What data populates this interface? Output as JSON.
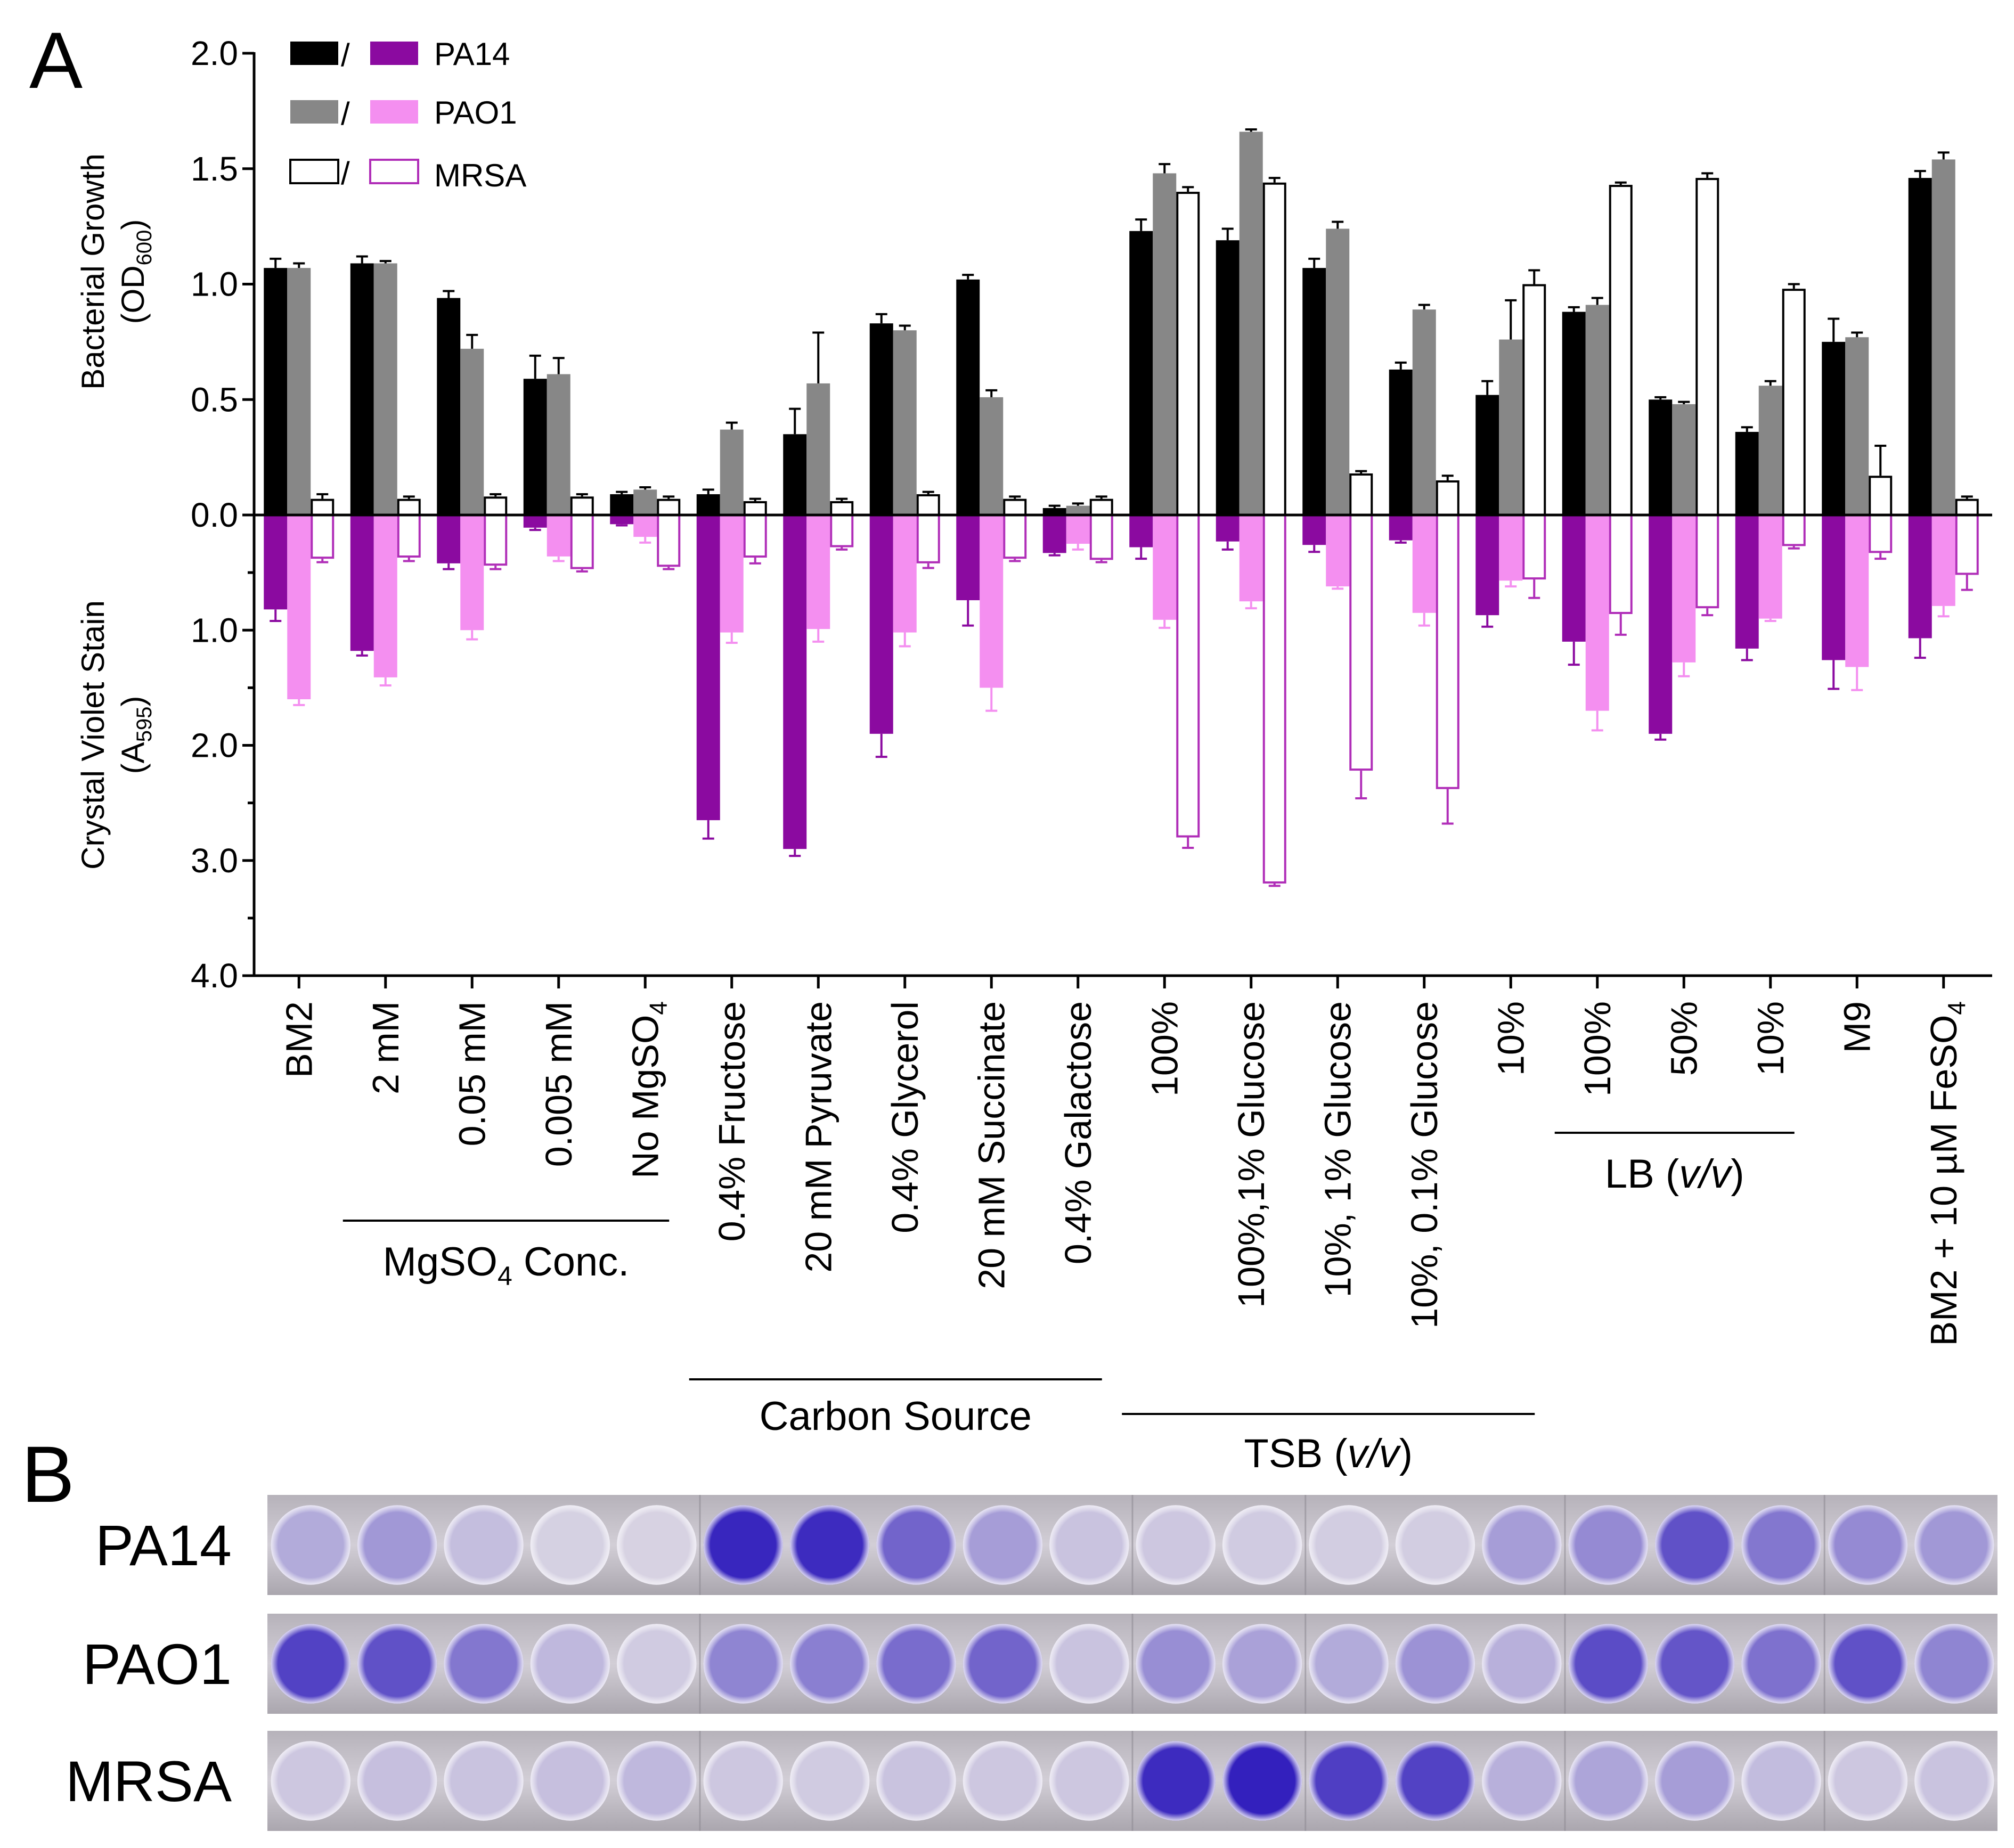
{
  "panel_labels": [
    "A",
    "B"
  ],
  "legend": [
    {
      "name": "PA14",
      "growth_color": "#000000",
      "stain_color": "#8b0aa0",
      "growth_fill": "solid",
      "stain_fill": "solid"
    },
    {
      "name": "PAO1",
      "growth_color": "#878787",
      "stain_color": "#f48ff0",
      "growth_fill": "solid",
      "stain_fill": "solid"
    },
    {
      "name": "MRSA",
      "growth_color": "#000000",
      "stain_color": "#b02eb8",
      "growth_fill": "open",
      "stain_fill": "open"
    }
  ],
  "legend_separator": "/",
  "chart_data": {
    "type": "bar",
    "top_ylabel": "Bacterial Growth",
    "top_ylabel_sub": {
      "pre": "(OD",
      "sub": "600",
      "post": ")"
    },
    "bottom_ylabel": "Crystal Violet Stain",
    "bottom_ylabel_sub": {
      "pre": "(A",
      "sub": "595",
      "post": ")"
    },
    "top_ylim": [
      0,
      2.0
    ],
    "bottom_ylim": [
      0,
      4.0
    ],
    "top_ticks": [
      "0.0",
      "0.5",
      "1.0",
      "1.5",
      "2.0"
    ],
    "bottom_ticks": [
      "1.0",
      "2.0",
      "3.0",
      "4.0"
    ],
    "categories": [
      "BM2",
      "2 mM",
      "0.05 mM",
      "0.005 mM",
      "No MgSO4",
      "0.4% Fructose",
      "20 mM Pyruvate",
      "0.4% Glycerol",
      "20 mM Succinate",
      "0.4% Galactose",
      "100%",
      "100%,1% Glucose",
      "10%, 1% Glucose",
      "10%, 0.1% Glucose",
      "10%",
      "100%",
      "50%",
      "10%",
      "M9",
      "BM2 + 10 µM FeSO4"
    ],
    "category_display": [
      {
        "main": "BM2"
      },
      {
        "main": "2 mM"
      },
      {
        "main": "0.05 mM"
      },
      {
        "main": "0.005 mM"
      },
      {
        "main": "No MgSO",
        "sub": "4"
      },
      {
        "main": "0.4% Fructose"
      },
      {
        "main": "20 mM Pyruvate"
      },
      {
        "main": "0.4% Glycerol"
      },
      {
        "main": "20 mM Succinate"
      },
      {
        "main": "0.4% Galactose"
      },
      {
        "main": "100%"
      },
      {
        "main": "100%,1% Glucose"
      },
      {
        "main": "10%, 1% Glucose"
      },
      {
        "main": "10%, 0.1% Glucose"
      },
      {
        "main": "10%"
      },
      {
        "main": "100%"
      },
      {
        "main": "50%"
      },
      {
        "main": "10%"
      },
      {
        "main": "M9"
      },
      {
        "main": "BM2 + 10 µM FeSO",
        "sub": "4"
      }
    ],
    "groups": [
      {
        "pre": "MgSO",
        "sub": "4",
        "post": " Conc.",
        "italic": "",
        "start": 1,
        "end": 4
      },
      {
        "pre": "Carbon Source",
        "sub": "",
        "post": "",
        "italic": "",
        "start": 5,
        "end": 9
      },
      {
        "pre": "TSB (",
        "sub": "",
        "post": ")",
        "italic": "v/v",
        "start": 10,
        "end": 14
      },
      {
        "pre": "LB (",
        "sub": "",
        "post": ")",
        "italic": "v/v",
        "start": 15,
        "end": 17
      }
    ],
    "growth_series": [
      {
        "name": "PA14",
        "values": [
          1.07,
          1.09,
          0.94,
          0.59,
          0.09,
          0.09,
          0.35,
          0.83,
          1.02,
          0.03,
          1.23,
          1.19,
          1.07,
          0.63,
          0.52,
          0.88,
          0.5,
          0.36,
          0.75,
          1.46
        ],
        "errors": [
          0.04,
          0.03,
          0.03,
          0.1,
          0.01,
          0.02,
          0.11,
          0.04,
          0.02,
          0.01,
          0.05,
          0.05,
          0.04,
          0.03,
          0.06,
          0.02,
          0.01,
          0.02,
          0.1,
          0.03
        ]
      },
      {
        "name": "PAO1",
        "values": [
          1.07,
          1.09,
          0.72,
          0.61,
          0.11,
          0.37,
          0.57,
          0.8,
          0.51,
          0.04,
          1.48,
          1.66,
          1.24,
          0.89,
          0.76,
          0.91,
          0.48,
          0.56,
          0.77,
          1.54
        ],
        "errors": [
          0.02,
          0.01,
          0.06,
          0.07,
          0.01,
          0.03,
          0.22,
          0.02,
          0.03,
          0.01,
          0.04,
          0.01,
          0.03,
          0.02,
          0.17,
          0.03,
          0.01,
          0.02,
          0.02,
          0.03
        ]
      },
      {
        "name": "MRSA",
        "values": [
          0.07,
          0.07,
          0.08,
          0.08,
          0.07,
          0.06,
          0.06,
          0.09,
          0.07,
          0.07,
          1.4,
          1.44,
          0.18,
          0.15,
          1.0,
          1.43,
          1.46,
          0.98,
          0.17,
          0.07
        ],
        "errors": [
          0.02,
          0.01,
          0.01,
          0.01,
          0.01,
          0.01,
          0.01,
          0.01,
          0.01,
          0.01,
          0.02,
          0.02,
          0.01,
          0.02,
          0.06,
          0.01,
          0.02,
          0.02,
          0.13,
          0.01
        ]
      }
    ],
    "stain_series": [
      {
        "name": "PA14",
        "values": [
          0.82,
          1.18,
          0.42,
          0.11,
          0.08,
          2.65,
          2.9,
          1.9,
          0.74,
          0.33,
          0.28,
          0.23,
          0.26,
          0.22,
          0.87,
          1.1,
          1.9,
          1.16,
          1.26,
          1.07
        ],
        "errors": [
          0.1,
          0.04,
          0.05,
          0.02,
          0.01,
          0.16,
          0.06,
          0.2,
          0.22,
          0.02,
          0.1,
          0.07,
          0.06,
          0.02,
          0.1,
          0.2,
          0.05,
          0.1,
          0.25,
          0.17
        ]
      },
      {
        "name": "PAO1",
        "values": [
          1.6,
          1.41,
          1.0,
          0.36,
          0.19,
          1.02,
          0.99,
          1.02,
          1.5,
          0.25,
          0.91,
          0.75,
          0.62,
          0.85,
          0.57,
          1.7,
          1.28,
          0.9,
          1.32,
          0.79
        ],
        "errors": [
          0.05,
          0.07,
          0.08,
          0.04,
          0.05,
          0.09,
          0.11,
          0.12,
          0.2,
          0.05,
          0.07,
          0.06,
          0.02,
          0.11,
          0.05,
          0.17,
          0.12,
          0.02,
          0.2,
          0.09
        ]
      },
      {
        "name": "MRSA",
        "values": [
          0.38,
          0.37,
          0.44,
          0.47,
          0.45,
          0.37,
          0.28,
          0.42,
          0.38,
          0.39,
          2.8,
          3.2,
          2.22,
          2.38,
          0.56,
          0.86,
          0.81,
          0.27,
          0.33,
          0.52
        ],
        "errors": [
          0.03,
          0.03,
          0.03,
          0.02,
          0.02,
          0.05,
          0.02,
          0.04,
          0.02,
          0.02,
          0.09,
          0.02,
          0.24,
          0.3,
          0.16,
          0.18,
          0.06,
          0.02,
          0.05,
          0.13
        ]
      }
    ]
  },
  "plate_rows": [
    {
      "label": "PA14",
      "intensity": [
        0.25,
        0.35,
        0.15,
        0.05,
        0.04,
        0.95,
        0.92,
        0.62,
        0.32,
        0.12,
        0.1,
        0.08,
        0.07,
        0.07,
        0.32,
        0.42,
        0.72,
        0.52,
        0.42,
        0.35
      ]
    },
    {
      "label": "PAO1",
      "intensity": [
        0.8,
        0.72,
        0.52,
        0.18,
        0.08,
        0.45,
        0.48,
        0.58,
        0.62,
        0.12,
        0.4,
        0.3,
        0.25,
        0.38,
        0.22,
        0.75,
        0.7,
        0.55,
        0.72,
        0.45
      ]
    },
    {
      "label": "MRSA",
      "intensity": [
        0.1,
        0.14,
        0.12,
        0.14,
        0.18,
        0.1,
        0.08,
        0.12,
        0.1,
        0.1,
        0.92,
        0.98,
        0.82,
        0.8,
        0.22,
        0.28,
        0.32,
        0.16,
        0.1,
        0.12
      ]
    }
  ]
}
